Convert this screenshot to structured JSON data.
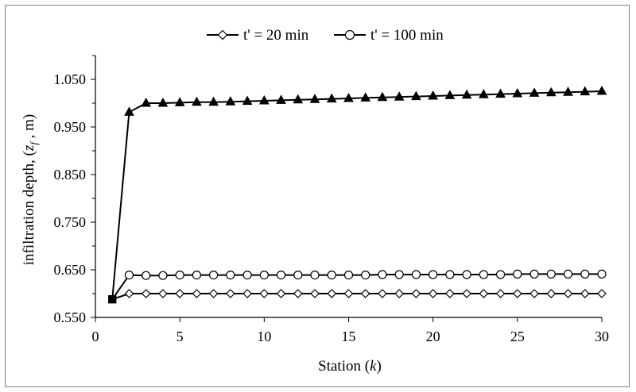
{
  "chart_data": {
    "type": "line",
    "title": "",
    "xlabel_prefix": "Station (",
    "xlabel_var": "k",
    "xlabel_suffix": ")",
    "ylabel_prefix": "infiltration depth, (",
    "ylabel_var": "z",
    "ylabel_sub": "f",
    "ylabel_suffix": " , m)",
    "xlim": [
      0,
      30
    ],
    "ylim": [
      0.55,
      1.1
    ],
    "x_ticks": [
      0,
      5,
      10,
      15,
      20,
      25,
      30
    ],
    "y_ticks": [
      0.55,
      0.65,
      0.75,
      0.85,
      0.95,
      1.05
    ],
    "y_tick_labels": [
      "0.550",
      "0.650",
      "0.750",
      "0.850",
      "0.950",
      "1.050"
    ],
    "grid": false,
    "legend_position": "top",
    "series": [
      {
        "name": "t' = 20 min",
        "marker": "diamond",
        "color": "#000000",
        "x": [
          1,
          2,
          3,
          4,
          5,
          6,
          7,
          8,
          9,
          10,
          11,
          12,
          13,
          14,
          15,
          16,
          17,
          18,
          19,
          20,
          21,
          22,
          23,
          24,
          25,
          26,
          27,
          28,
          29,
          30
        ],
        "y": [
          0.588,
          0.6,
          0.6,
          0.6,
          0.6,
          0.6,
          0.6,
          0.6,
          0.6,
          0.6,
          0.6,
          0.6,
          0.6,
          0.6,
          0.6,
          0.6,
          0.6,
          0.6,
          0.6,
          0.6,
          0.6,
          0.6,
          0.6,
          0.6,
          0.6,
          0.6,
          0.6,
          0.6,
          0.6,
          0.6
        ]
      },
      {
        "name": "t' = 100 min",
        "marker": "circle",
        "color": "#000000",
        "x": [
          1,
          2,
          3,
          4,
          5,
          6,
          7,
          8,
          9,
          10,
          11,
          12,
          13,
          14,
          15,
          16,
          17,
          18,
          19,
          20,
          21,
          22,
          23,
          24,
          25,
          26,
          27,
          28,
          29,
          30
        ],
        "y": [
          0.588,
          0.639,
          0.638,
          0.638,
          0.639,
          0.639,
          0.639,
          0.639,
          0.639,
          0.639,
          0.639,
          0.639,
          0.639,
          0.639,
          0.639,
          0.639,
          0.64,
          0.64,
          0.64,
          0.64,
          0.64,
          0.64,
          0.64,
          0.64,
          0.641,
          0.641,
          0.641,
          0.641,
          0.641,
          0.641
        ]
      },
      {
        "marker": "triangle",
        "color": "#000000",
        "x": [
          1,
          2,
          3,
          4,
          5,
          6,
          7,
          8,
          9,
          10,
          11,
          12,
          13,
          14,
          15,
          16,
          17,
          18,
          19,
          20,
          21,
          22,
          23,
          24,
          25,
          26,
          27,
          28,
          29,
          30
        ],
        "y": [
          0.588,
          0.981,
          1.0,
          1.0,
          1.001,
          1.002,
          1.002,
          1.003,
          1.004,
          1.005,
          1.006,
          1.007,
          1.008,
          1.009,
          1.01,
          1.011,
          1.012,
          1.013,
          1.014,
          1.015,
          1.016,
          1.017,
          1.018,
          1.019,
          1.02,
          1.021,
          1.022,
          1.023,
          1.024,
          1.025
        ]
      }
    ]
  }
}
